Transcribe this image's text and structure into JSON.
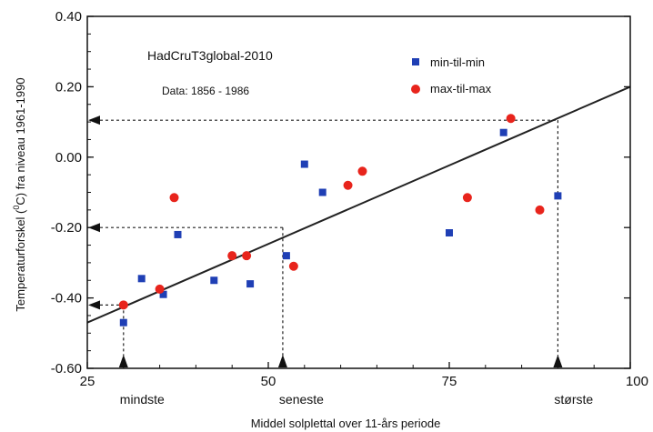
{
  "chart_data": {
    "type": "scatter",
    "title": "HadCruT3global-2010",
    "subtitle": "Data: 1856 - 1986",
    "xlabel": "Middel solplettal over 11-års periode",
    "ylabel_pre": "Temperaturforskel (",
    "ylabel_sup": "0",
    "ylabel_post": "C) fra niveau 1961-1990",
    "xlim": [
      25,
      100
    ],
    "ylim": [
      -0.6,
      0.4
    ],
    "x_ticks": [
      {
        "value": 25,
        "label": "25"
      },
      {
        "value": 50,
        "label": "50"
      },
      {
        "value": 75,
        "label": "75"
      },
      {
        "value": 100,
        "label": "100"
      }
    ],
    "y_ticks": [
      {
        "value": 0.4,
        "label": "0.40"
      },
      {
        "value": 0.2,
        "label": "0.20"
      },
      {
        "value": 0.0,
        "label": "0.00"
      },
      {
        "value": -0.2,
        "label": "-0.20"
      },
      {
        "value": -0.4,
        "label": "-0.40"
      },
      {
        "value": -0.6,
        "label": "-0.60"
      }
    ],
    "series": [
      {
        "name": "min-til-min",
        "marker": "square",
        "color": "#1f3fb5",
        "points": [
          [
            30,
            -0.47
          ],
          [
            32.5,
            -0.345
          ],
          [
            35.5,
            -0.39
          ],
          [
            37.5,
            -0.22
          ],
          [
            42.5,
            -0.35
          ],
          [
            47.5,
            -0.36
          ],
          [
            52.5,
            -0.28
          ],
          [
            55,
            -0.02
          ],
          [
            57.5,
            -0.1
          ],
          [
            75,
            -0.215
          ],
          [
            82.5,
            0.07
          ],
          [
            90,
            -0.11
          ]
        ]
      },
      {
        "name": "max-til-max",
        "marker": "circle",
        "color": "#e8241c",
        "points": [
          [
            30,
            -0.42
          ],
          [
            35,
            -0.375
          ],
          [
            37,
            -0.115
          ],
          [
            45,
            -0.28
          ],
          [
            47,
            -0.28
          ],
          [
            53.5,
            -0.31
          ],
          [
            61,
            -0.08
          ],
          [
            63,
            -0.04
          ],
          [
            77.5,
            -0.115
          ],
          [
            87.5,
            -0.15
          ],
          [
            83.5,
            0.11
          ]
        ]
      }
    ],
    "trendline": {
      "x": [
        25,
        100
      ],
      "y": [
        -0.47,
        0.2
      ]
    },
    "reference_points": [
      {
        "x": 30,
        "y": -0.42,
        "label": "mindste"
      },
      {
        "x": 52,
        "y": -0.2,
        "label": "seneste"
      },
      {
        "x": 90,
        "y": 0.105,
        "label": "største"
      }
    ],
    "grid": false,
    "legend_position": "top-right"
  }
}
